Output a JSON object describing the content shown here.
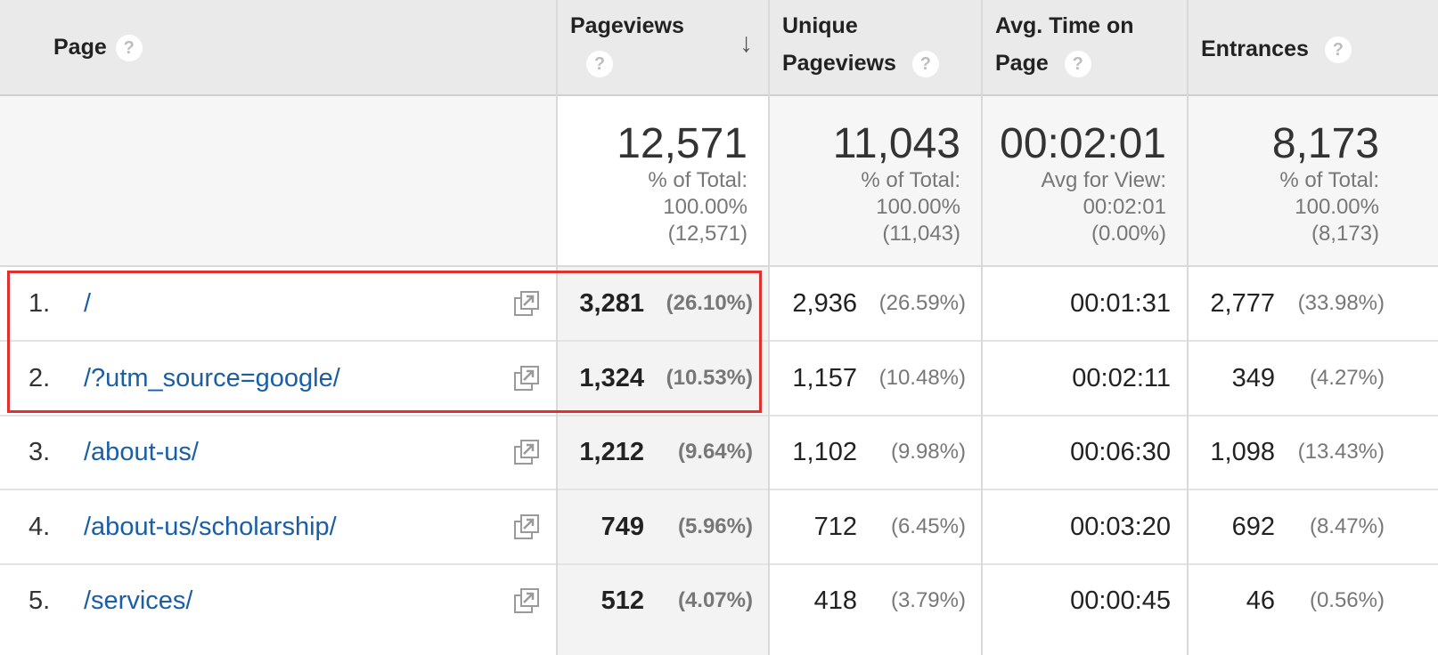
{
  "header": {
    "page": "Page",
    "pageviews": "Pageviews",
    "unique_line1": "Unique",
    "unique_line2": "Pageviews",
    "avgtime_line1": "Avg. Time on",
    "avgtime_line2": "Page",
    "entrances": "Entrances",
    "help_glyph": "?",
    "sort_glyph": "↓"
  },
  "totals": {
    "pageviews": {
      "value": "12,571",
      "l1": "% of Total:",
      "l2": "100.00%",
      "l3": "(12,571)"
    },
    "unique": {
      "value": "11,043",
      "l1": "% of Total:",
      "l2": "100.00%",
      "l3": "(11,043)"
    },
    "avgtime": {
      "value": "00:02:01",
      "l1": "Avg for View:",
      "l2": "00:02:01",
      "l3": "(0.00%)"
    },
    "entrances": {
      "value": "8,173",
      "l1": "% of Total:",
      "l2": "100.00%",
      "l3": "(8,173)"
    }
  },
  "rows": [
    {
      "num": "1.",
      "page": "/",
      "pv": "3,281",
      "pv_pct": "(26.10%)",
      "upv": "2,936",
      "upv_pct": "(26.59%)",
      "time": "00:01:31",
      "ent": "2,777",
      "ent_pct": "(33.98%)"
    },
    {
      "num": "2.",
      "page": "/?utm_source=google/",
      "pv": "1,324",
      "pv_pct": "(10.53%)",
      "upv": "1,157",
      "upv_pct": "(10.48%)",
      "time": "00:02:11",
      "ent": "349",
      "ent_pct": "(4.27%)"
    },
    {
      "num": "3.",
      "page": "/about-us/",
      "pv": "1,212",
      "pv_pct": "(9.64%)",
      "upv": "1,102",
      "upv_pct": "(9.98%)",
      "time": "00:06:30",
      "ent": "1,098",
      "ent_pct": "(13.43%)"
    },
    {
      "num": "4.",
      "page": "/about-us/scholarship/",
      "pv": "749",
      "pv_pct": "(5.96%)",
      "upv": "712",
      "upv_pct": "(6.45%)",
      "time": "00:03:20",
      "ent": "692",
      "ent_pct": "(8.47%)"
    },
    {
      "num": "5.",
      "page": "/services/",
      "pv": "512",
      "pv_pct": "(4.07%)",
      "upv": "418",
      "upv_pct": "(3.79%)",
      "time": "00:00:45",
      "ent": "46",
      "ent_pct": "(0.56%)"
    }
  ],
  "icons": {
    "row_action": "open-in-new-window-icon",
    "help": "help-icon",
    "sort": "sort-descending-icon"
  },
  "colors": {
    "link": "#1a5fa6",
    "highlight": "#e0312f",
    "header_bg": "#eaeaea"
  }
}
